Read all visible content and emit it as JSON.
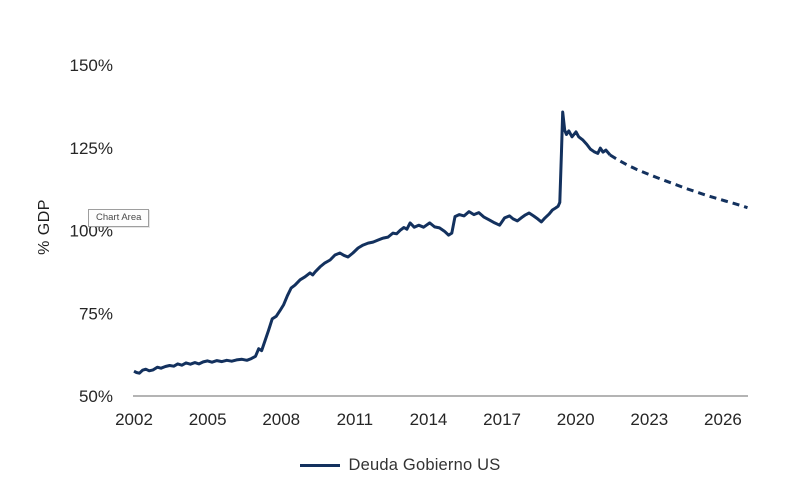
{
  "overlay": {
    "tooltip_label": "Chart Area"
  },
  "chart_data": {
    "type": "line",
    "title": "",
    "xlabel": "",
    "ylabel": "% GDP",
    "grid": false,
    "legend_position": "bottom",
    "xlim": [
      2002,
      2027.1
    ],
    "ylim": [
      50,
      150
    ],
    "x_ticks": [
      2002,
      2005,
      2008,
      2011,
      2014,
      2017,
      2020,
      2023,
      2026
    ],
    "y_tick_values": [
      50,
      75,
      100,
      125,
      150
    ],
    "y_tick_labels": [
      "50%",
      "75%",
      "100%",
      "125%",
      "150%"
    ],
    "axis_line_color": "#9b9b9b",
    "tick_label_color": "#262626",
    "series": [
      {
        "name": "Deuda Gobierno US",
        "color": "#13315E",
        "segments": [
          {
            "style": "solid",
            "points": [
              [
                2002.0,
                57.5
              ],
              [
                2002.1,
                57.1
              ],
              [
                2002.22,
                56.9
              ],
              [
                2002.35,
                57.8
              ],
              [
                2002.48,
                58.1
              ],
              [
                2002.62,
                57.6
              ],
              [
                2002.78,
                57.9
              ],
              [
                2002.95,
                58.7
              ],
              [
                2003.1,
                58.4
              ],
              [
                2003.28,
                58.9
              ],
              [
                2003.45,
                59.2
              ],
              [
                2003.62,
                59.0
              ],
              [
                2003.78,
                59.7
              ],
              [
                2003.95,
                59.3
              ],
              [
                2004.12,
                60.0
              ],
              [
                2004.3,
                59.6
              ],
              [
                2004.48,
                60.1
              ],
              [
                2004.65,
                59.7
              ],
              [
                2004.82,
                60.3
              ],
              [
                2005.0,
                60.6
              ],
              [
                2005.18,
                60.2
              ],
              [
                2005.38,
                60.7
              ],
              [
                2005.58,
                60.4
              ],
              [
                2005.78,
                60.8
              ],
              [
                2005.98,
                60.5
              ],
              [
                2006.18,
                60.9
              ],
              [
                2006.4,
                61.1
              ],
              [
                2006.6,
                60.8
              ],
              [
                2006.78,
                61.3
              ],
              [
                2006.95,
                62.0
              ],
              [
                2007.08,
                64.3
              ],
              [
                2007.2,
                63.7
              ],
              [
                2007.33,
                66.5
              ],
              [
                2007.48,
                69.8
              ],
              [
                2007.63,
                73.3
              ],
              [
                2007.8,
                74.1
              ],
              [
                2007.95,
                75.8
              ],
              [
                2008.1,
                77.6
              ],
              [
                2008.25,
                80.3
              ],
              [
                2008.4,
                82.6
              ],
              [
                2008.56,
                83.5
              ],
              [
                2008.77,
                85.1
              ],
              [
                2008.97,
                86.0
              ],
              [
                2009.17,
                87.2
              ],
              [
                2009.28,
                86.6
              ],
              [
                2009.38,
                87.5
              ],
              [
                2009.58,
                89.0
              ],
              [
                2009.78,
                90.2
              ],
              [
                2009.99,
                91.1
              ],
              [
                2010.19,
                92.6
              ],
              [
                2010.39,
                93.2
              ],
              [
                2010.55,
                92.5
              ],
              [
                2010.72,
                92.0
              ],
              [
                2010.92,
                93.2
              ],
              [
                2011.13,
                94.7
              ],
              [
                2011.33,
                95.6
              ],
              [
                2011.54,
                96.2
              ],
              [
                2011.74,
                96.5
              ],
              [
                2011.94,
                97.1
              ],
              [
                2012.15,
                97.7
              ],
              [
                2012.35,
                98.0
              ],
              [
                2012.55,
                99.2
              ],
              [
                2012.7,
                99.0
              ],
              [
                2012.85,
                100.1
              ],
              [
                2013.0,
                100.9
              ],
              [
                2013.12,
                100.4
              ],
              [
                2013.25,
                102.3
              ],
              [
                2013.42,
                101.0
              ],
              [
                2013.6,
                101.6
              ],
              [
                2013.8,
                101.0
              ],
              [
                2014.05,
                102.3
              ],
              [
                2014.25,
                101.1
              ],
              [
                2014.45,
                100.8
              ],
              [
                2014.65,
                99.8
              ],
              [
                2014.82,
                98.6
              ],
              [
                2014.95,
                99.2
              ],
              [
                2015.08,
                104.2
              ],
              [
                2015.25,
                104.8
              ],
              [
                2015.45,
                104.4
              ],
              [
                2015.65,
                105.7
              ],
              [
                2015.85,
                104.8
              ],
              [
                2016.05,
                105.4
              ],
              [
                2016.25,
                104.1
              ],
              [
                2016.48,
                103.2
              ],
              [
                2016.7,
                102.3
              ],
              [
                2016.9,
                101.6
              ],
              [
                2017.1,
                103.8
              ],
              [
                2017.3,
                104.4
              ],
              [
                2017.45,
                103.5
              ],
              [
                2017.62,
                102.9
              ],
              [
                2017.78,
                103.8
              ],
              [
                2017.95,
                104.7
              ],
              [
                2018.1,
                105.3
              ],
              [
                2018.28,
                104.4
              ],
              [
                2018.45,
                103.5
              ],
              [
                2018.6,
                102.6
              ],
              [
                2018.75,
                103.8
              ],
              [
                2018.92,
                105.0
              ],
              [
                2019.05,
                106.2
              ],
              [
                2019.18,
                106.8
              ],
              [
                2019.28,
                107.3
              ],
              [
                2019.35,
                108.5
              ],
              [
                2019.42,
                124.0
              ],
              [
                2019.47,
                135.8
              ],
              [
                2019.55,
                130.3
              ],
              [
                2019.62,
                129.0
              ],
              [
                2019.72,
                130.1
              ],
              [
                2019.85,
                128.3
              ],
              [
                2020.01,
                129.8
              ],
              [
                2020.12,
                128.3
              ],
              [
                2020.28,
                127.4
              ],
              [
                2020.45,
                126.0
              ],
              [
                2020.6,
                124.6
              ],
              [
                2020.75,
                123.8
              ],
              [
                2020.9,
                123.3
              ],
              [
                2021.0,
                124.9
              ],
              [
                2021.11,
                123.7
              ],
              [
                2021.23,
                124.3
              ],
              [
                2021.4,
                122.8
              ]
            ]
          },
          {
            "style": "dashed",
            "points": [
              [
                2021.4,
                122.8
              ],
              [
                2021.75,
                121.2
              ],
              [
                2022.1,
                119.8
              ],
              [
                2022.5,
                118.4
              ],
              [
                2022.9,
                117.2
              ],
              [
                2023.3,
                116.0
              ],
              [
                2023.7,
                114.9
              ],
              [
                2024.1,
                113.8
              ],
              [
                2024.5,
                112.7
              ],
              [
                2024.9,
                111.7
              ],
              [
                2025.3,
                110.7
              ],
              [
                2025.7,
                109.8
              ],
              [
                2026.1,
                108.9
              ],
              [
                2026.45,
                108.2
              ],
              [
                2026.75,
                107.5
              ],
              [
                2027.0,
                106.9
              ]
            ]
          }
        ]
      }
    ],
    "legend": [
      {
        "label": "Deuda Gobierno US",
        "color": "#13315E",
        "style": "solid"
      }
    ]
  }
}
